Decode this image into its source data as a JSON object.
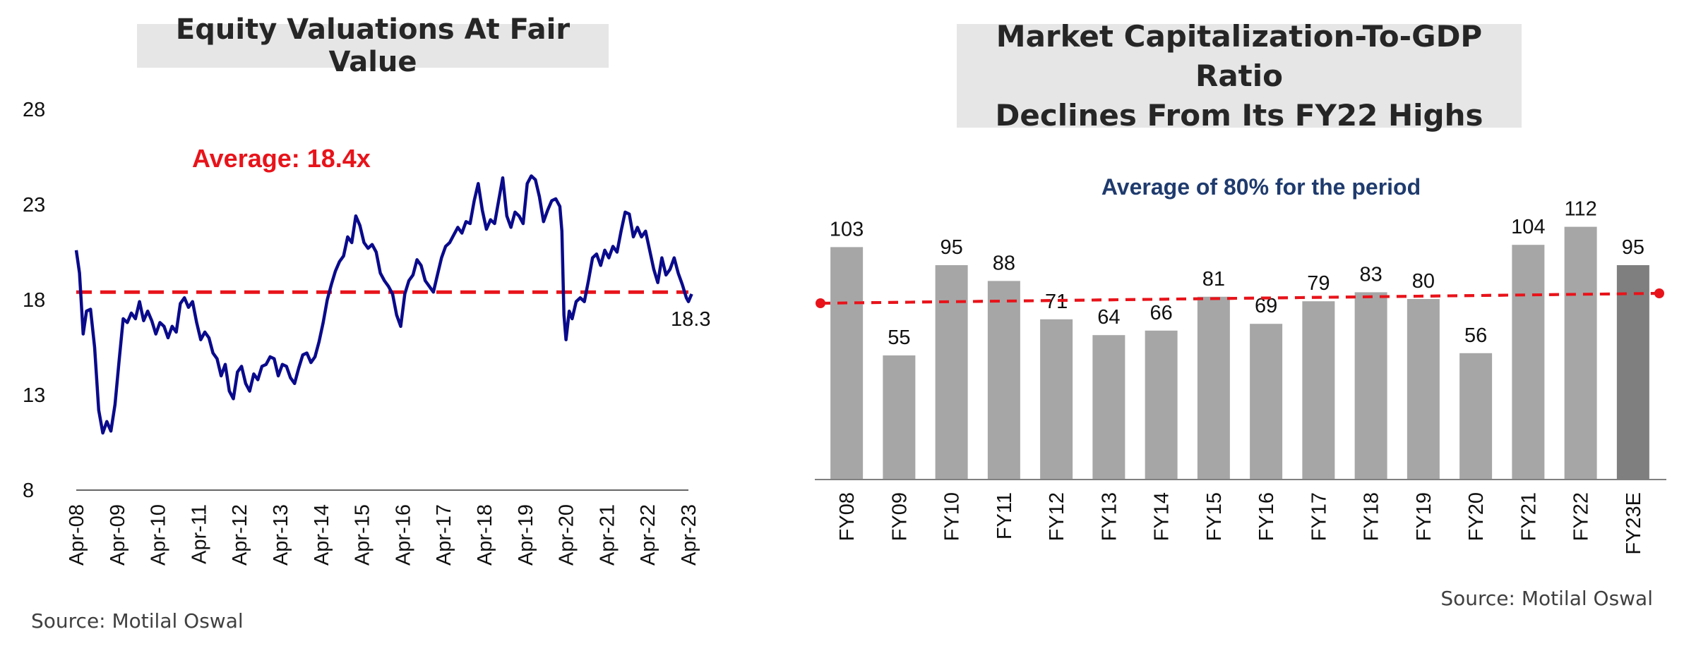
{
  "left": {
    "title": "Equity Valuations At Fair Value",
    "source": "Source: Motilal Oswal"
  },
  "right": {
    "title_line1": "Market Capitalization-To-GDP Ratio",
    "title_line2": "Declines From Its FY22 Highs",
    "source": "Source: Motilal Oswal"
  },
  "colors": {
    "line": "#0a0a8c",
    "average": "#e8131a",
    "bar": "#a6a6a6",
    "bar_highlight": "#7f7f7f",
    "avg_text": "#1f3b6e"
  },
  "chart_data": [
    {
      "type": "line",
      "title": "Equity Valuations At Fair Value",
      "ylim": [
        8,
        28
      ],
      "yticks": [
        8,
        13,
        18,
        23,
        28
      ],
      "xticks": [
        "Apr-08",
        "Apr-09",
        "Apr-10",
        "Apr-11",
        "Apr-12",
        "Apr-13",
        "Apr-14",
        "Apr-15",
        "Apr-16",
        "Apr-17",
        "Apr-18",
        "Apr-19",
        "Apr-20",
        "Apr-21",
        "Apr-22",
        "Apr-23"
      ],
      "average": 18.4,
      "average_label": "Average: 18.4x",
      "last_label": "18.3",
      "series": [
        {
          "values": [
            [
              2008.25,
              20.6
            ],
            [
              2008.33,
              19.4
            ],
            [
              2008.42,
              16.2
            ],
            [
              2008.5,
              17.4
            ],
            [
              2008.6,
              17.5
            ],
            [
              2008.7,
              15.5
            ],
            [
              2008.8,
              12.2
            ],
            [
              2008.9,
              11.0
            ],
            [
              2009.0,
              11.6
            ],
            [
              2009.1,
              11.1
            ],
            [
              2009.2,
              12.5
            ],
            [
              2009.3,
              14.8
            ],
            [
              2009.4,
              17.0
            ],
            [
              2009.5,
              16.8
            ],
            [
              2009.6,
              17.3
            ],
            [
              2009.7,
              17.0
            ],
            [
              2009.8,
              17.9
            ],
            [
              2009.9,
              16.9
            ],
            [
              2010.0,
              17.4
            ],
            [
              2010.1,
              16.9
            ],
            [
              2010.2,
              16.2
            ],
            [
              2010.3,
              16.8
            ],
            [
              2010.4,
              16.6
            ],
            [
              2010.5,
              16.0
            ],
            [
              2010.6,
              16.6
            ],
            [
              2010.7,
              16.3
            ],
            [
              2010.8,
              17.8
            ],
            [
              2010.9,
              18.1
            ],
            [
              2011.0,
              17.6
            ],
            [
              2011.1,
              17.9
            ],
            [
              2011.2,
              16.8
            ],
            [
              2011.3,
              15.9
            ],
            [
              2011.4,
              16.3
            ],
            [
              2011.5,
              16.0
            ],
            [
              2011.6,
              15.2
            ],
            [
              2011.7,
              14.9
            ],
            [
              2011.8,
              14.0
            ],
            [
              2011.9,
              14.6
            ],
            [
              2012.0,
              13.2
            ],
            [
              2012.1,
              12.8
            ],
            [
              2012.2,
              14.2
            ],
            [
              2012.3,
              14.5
            ],
            [
              2012.4,
              13.6
            ],
            [
              2012.5,
              13.2
            ],
            [
              2012.6,
              14.1
            ],
            [
              2012.7,
              13.8
            ],
            [
              2012.8,
              14.5
            ],
            [
              2012.9,
              14.6
            ],
            [
              2013.0,
              15.0
            ],
            [
              2013.1,
              14.9
            ],
            [
              2013.2,
              14.0
            ],
            [
              2013.3,
              14.6
            ],
            [
              2013.4,
              14.5
            ],
            [
              2013.5,
              13.9
            ],
            [
              2013.6,
              13.6
            ],
            [
              2013.7,
              14.4
            ],
            [
              2013.8,
              15.1
            ],
            [
              2013.9,
              15.2
            ],
            [
              2014.0,
              14.7
            ],
            [
              2014.1,
              15.0
            ],
            [
              2014.2,
              15.8
            ],
            [
              2014.3,
              16.8
            ],
            [
              2014.4,
              18.0
            ],
            [
              2014.5,
              18.8
            ],
            [
              2014.6,
              19.5
            ],
            [
              2014.7,
              20.0
            ],
            [
              2014.8,
              20.3
            ],
            [
              2014.9,
              21.3
            ],
            [
              2015.0,
              21.0
            ],
            [
              2015.1,
              22.4
            ],
            [
              2015.2,
              21.9
            ],
            [
              2015.3,
              21.0
            ],
            [
              2015.4,
              20.7
            ],
            [
              2015.5,
              20.9
            ],
            [
              2015.6,
              20.5
            ],
            [
              2015.7,
              19.4
            ],
            [
              2015.8,
              19.0
            ],
            [
              2015.9,
              18.7
            ],
            [
              2016.0,
              18.3
            ],
            [
              2016.1,
              17.2
            ],
            [
              2016.2,
              16.6
            ],
            [
              2016.3,
              18.3
            ],
            [
              2016.4,
              19.0
            ],
            [
              2016.5,
              19.3
            ],
            [
              2016.6,
              20.1
            ],
            [
              2016.7,
              19.8
            ],
            [
              2016.8,
              19.0
            ],
            [
              2016.9,
              18.7
            ],
            [
              2017.0,
              18.4
            ],
            [
              2017.1,
              19.3
            ],
            [
              2017.2,
              20.2
            ],
            [
              2017.3,
              20.8
            ],
            [
              2017.4,
              21.0
            ],
            [
              2017.5,
              21.4
            ],
            [
              2017.6,
              21.8
            ],
            [
              2017.7,
              21.5
            ],
            [
              2017.8,
              22.1
            ],
            [
              2017.9,
              22.0
            ],
            [
              2018.0,
              23.2
            ],
            [
              2018.1,
              24.1
            ],
            [
              2018.2,
              22.7
            ],
            [
              2018.3,
              21.7
            ],
            [
              2018.4,
              22.2
            ],
            [
              2018.5,
              22.0
            ],
            [
              2018.6,
              23.2
            ],
            [
              2018.7,
              24.4
            ],
            [
              2018.8,
              22.4
            ],
            [
              2018.9,
              21.8
            ],
            [
              2019.0,
              22.6
            ],
            [
              2019.1,
              22.4
            ],
            [
              2019.2,
              22.0
            ],
            [
              2019.3,
              24.1
            ],
            [
              2019.4,
              24.5
            ],
            [
              2019.5,
              24.3
            ],
            [
              2019.6,
              23.4
            ],
            [
              2019.7,
              22.1
            ],
            [
              2019.8,
              22.7
            ],
            [
              2019.9,
              23.2
            ],
            [
              2020.0,
              23.3
            ],
            [
              2020.1,
              22.9
            ],
            [
              2020.15,
              21.6
            ],
            [
              2020.2,
              17.2
            ],
            [
              2020.25,
              15.9
            ],
            [
              2020.33,
              17.4
            ],
            [
              2020.4,
              17.0
            ],
            [
              2020.5,
              17.9
            ],
            [
              2020.6,
              18.1
            ],
            [
              2020.7,
              17.9
            ],
            [
              2020.8,
              19.0
            ],
            [
              2020.9,
              20.2
            ],
            [
              2021.0,
              20.4
            ],
            [
              2021.1,
              19.8
            ],
            [
              2021.2,
              20.6
            ],
            [
              2021.3,
              20.2
            ],
            [
              2021.4,
              20.8
            ],
            [
              2021.5,
              20.5
            ],
            [
              2021.6,
              21.6
            ],
            [
              2021.7,
              22.6
            ],
            [
              2021.8,
              22.5
            ],
            [
              2021.9,
              21.3
            ],
            [
              2022.0,
              21.8
            ],
            [
              2022.1,
              21.3
            ],
            [
              2022.2,
              21.6
            ],
            [
              2022.3,
              20.6
            ],
            [
              2022.4,
              19.6
            ],
            [
              2022.5,
              18.9
            ],
            [
              2022.6,
              20.2
            ],
            [
              2022.7,
              19.3
            ],
            [
              2022.8,
              19.6
            ],
            [
              2022.9,
              20.2
            ],
            [
              2023.0,
              19.4
            ],
            [
              2023.1,
              18.8
            ],
            [
              2023.2,
              18.1
            ],
            [
              2023.25,
              17.9
            ],
            [
              2023.33,
              18.3
            ]
          ]
        }
      ]
    },
    {
      "type": "bar",
      "title": "Market Capitalization-To-GDP Ratio Declines From Its FY22 Highs",
      "categories": [
        "FY08",
        "FY09",
        "FY10",
        "FY11",
        "FY12",
        "FY13",
        "FY14",
        "FY15",
        "FY16",
        "FY17",
        "FY18",
        "FY19",
        "FY20",
        "FY21",
        "FY22",
        "FY23E"
      ],
      "values": [
        103,
        55,
        95,
        88,
        71,
        64,
        66,
        81,
        69,
        79,
        83,
        80,
        56,
        104,
        112,
        95
      ],
      "average": 80,
      "annotation": "Average of 80% for the period",
      "ylim": [
        0,
        130
      ]
    }
  ]
}
